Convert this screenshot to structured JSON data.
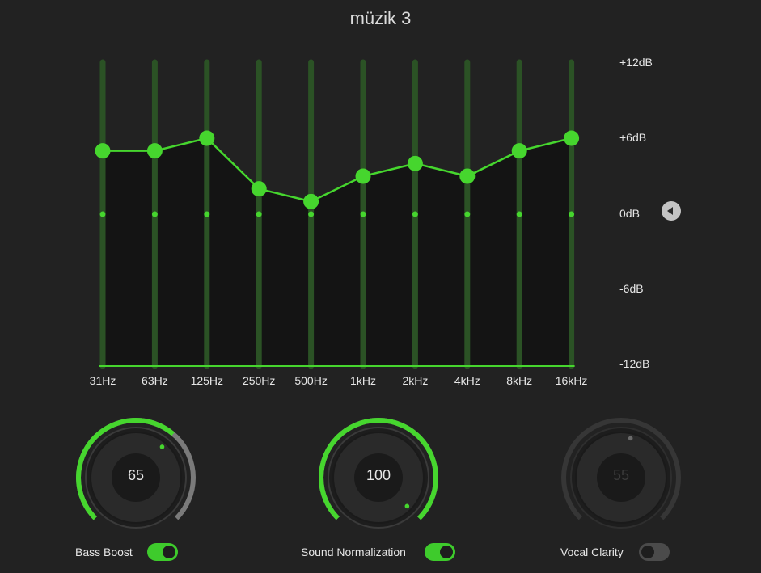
{
  "title": "müzik 3",
  "colors": {
    "accent": "#46d62e",
    "track": "#2b5225",
    "fill": "#141414",
    "background": "#222222"
  },
  "equalizer": {
    "bands": [
      {
        "label": "31Hz",
        "gain_db": 5
      },
      {
        "label": "63Hz",
        "gain_db": 5
      },
      {
        "label": "125Hz",
        "gain_db": 6
      },
      {
        "label": "250Hz",
        "gain_db": 2
      },
      {
        "label": "500Hz",
        "gain_db": 1
      },
      {
        "label": "1kHz",
        "gain_db": 3
      },
      {
        "label": "2kHz",
        "gain_db": 4
      },
      {
        "label": "4kHz",
        "gain_db": 3
      },
      {
        "label": "8kHz",
        "gain_db": 5
      },
      {
        "label": "16kHz",
        "gain_db": 6
      }
    ],
    "db_min": -12,
    "db_max": 12,
    "db_labels": [
      "+12dB",
      "+6dB",
      "0dB",
      "-6dB",
      "-12dB"
    ],
    "reset_icon": "triangle-left-icon"
  },
  "controls": [
    {
      "label": "Bass Boost",
      "value": "65",
      "value_fraction": 0.65,
      "enabled": true
    },
    {
      "label": "Sound Normalization",
      "value": "100",
      "value_fraction": 1.0,
      "enabled": true
    },
    {
      "label": "Vocal Clarity",
      "value": "55",
      "value_fraction": 0.55,
      "enabled": false
    }
  ]
}
